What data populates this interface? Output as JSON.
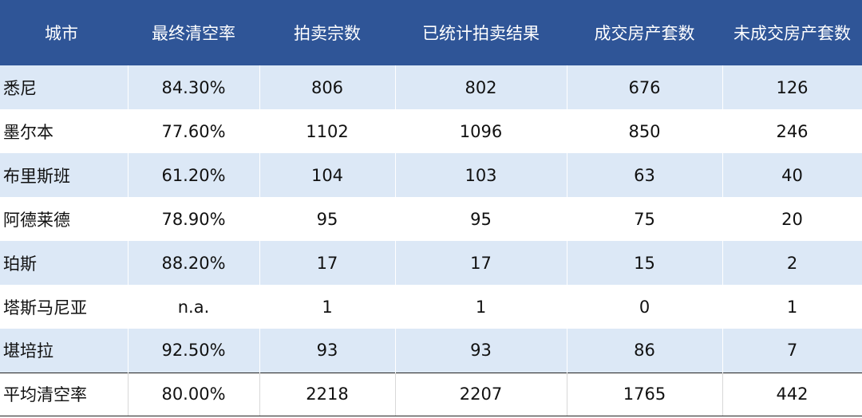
{
  "table": {
    "headers": [
      "城市",
      "最终清空率",
      "拍卖宗数",
      "已统计拍卖结果",
      "成交房产套数",
      "未成交房产套数"
    ],
    "rows": [
      [
        "悉尼",
        "84.30%",
        "806",
        "802",
        "676",
        "126"
      ],
      [
        "墨尔本",
        "77.60%",
        "1102",
        "1096",
        "850",
        "246"
      ],
      [
        "布里斯班",
        "61.20%",
        "104",
        "103",
        "63",
        "40"
      ],
      [
        "阿德莱德",
        "78.90%",
        "95",
        "95",
        "75",
        "20"
      ],
      [
        "珀斯",
        "88.20%",
        "17",
        "17",
        "15",
        "2"
      ],
      [
        "塔斯马尼亚",
        "n.a.",
        "1",
        "1",
        "0",
        "1"
      ],
      [
        "堪培拉",
        "92.50%",
        "93",
        "93",
        "86",
        "7"
      ]
    ],
    "summary": [
      "平均清空率",
      "80.00%",
      "2218",
      "2207",
      "1765",
      "442"
    ]
  },
  "colors": {
    "header_bg": "#2f5597",
    "band_bg": "#dce8f6",
    "text": "#111111"
  }
}
